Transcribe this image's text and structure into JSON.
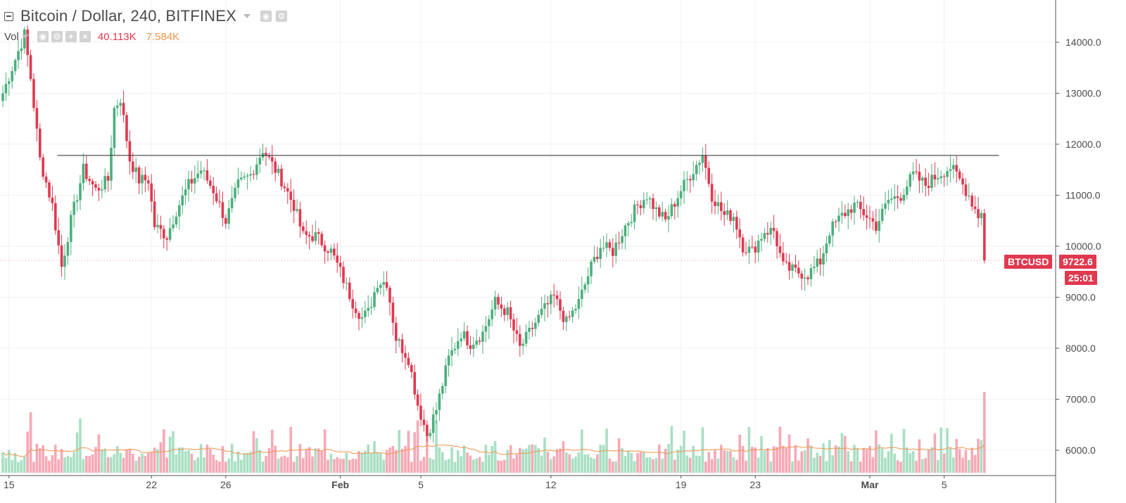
{
  "header": {
    "title": "Bitcoin / Dollar, 240, BITFINEX",
    "vol_label": "Vol",
    "vol_value_1": "40.113K",
    "vol_value_2": "7.584K"
  },
  "price_tag": {
    "symbol": "BTCUSD",
    "price": "9722.6",
    "countdown": "25:01"
  },
  "colors": {
    "up": "#4caf7d",
    "down": "#e0394f",
    "vol_up": "#a9dfc3",
    "vol_down": "#f6a9b6",
    "vol_ma": "#f0954a",
    "grid": "#eef1f5",
    "hline": "#3c3c3c",
    "axis_text": "#4a4a4a"
  },
  "chart_data": {
    "type": "candlestick",
    "timeframe": "240",
    "price_axis": {
      "ylim": [
        5520,
        14980
      ],
      "ticks": [
        "6000.0",
        "7000.0",
        "8000.0",
        "9000.0",
        "10000.0",
        "11000.0",
        "12000.0",
        "13000.0",
        "14000.0"
      ],
      "tick_values": [
        6000,
        7000,
        8000,
        9000,
        10000,
        11000,
        12000,
        13000,
        14000
      ]
    },
    "x_axis": {
      "labels": [
        "15",
        "22",
        "26",
        "Feb",
        "5",
        "12",
        "19",
        "23",
        "Mar",
        "5"
      ],
      "label_candle_index": [
        2,
        48,
        72,
        109,
        135,
        177,
        219,
        243,
        280,
        304
      ]
    },
    "horizontal_line": {
      "price": 11780,
      "from_index": 14,
      "to_index": 318
    },
    "anchors": [
      {
        "i": 0,
        "p": 13000
      },
      {
        "i": 3,
        "p": 13500
      },
      {
        "i": 7,
        "p": 14150
      },
      {
        "i": 9,
        "p": 13300
      },
      {
        "i": 12,
        "p": 11700
      },
      {
        "i": 16,
        "p": 10800
      },
      {
        "i": 19,
        "p": 9600
      },
      {
        "i": 22,
        "p": 10500
      },
      {
        "i": 26,
        "p": 11500
      },
      {
        "i": 30,
        "p": 11100
      },
      {
        "i": 34,
        "p": 11300
      },
      {
        "i": 36,
        "p": 12700
      },
      {
        "i": 38,
        "p": 12900
      },
      {
        "i": 41,
        "p": 11700
      },
      {
        "i": 44,
        "p": 11300
      },
      {
        "i": 47,
        "p": 11300
      },
      {
        "i": 49,
        "p": 10400
      },
      {
        "i": 53,
        "p": 10200
      },
      {
        "i": 56,
        "p": 10700
      },
      {
        "i": 60,
        "p": 11200
      },
      {
        "i": 64,
        "p": 11500
      },
      {
        "i": 68,
        "p": 11100
      },
      {
        "i": 72,
        "p": 10500
      },
      {
        "i": 76,
        "p": 11200
      },
      {
        "i": 80,
        "p": 11400
      },
      {
        "i": 84,
        "p": 11900
      },
      {
        "i": 86,
        "p": 11700
      },
      {
        "i": 90,
        "p": 11300
      },
      {
        "i": 94,
        "p": 10800
      },
      {
        "i": 97,
        "p": 10200
      },
      {
        "i": 101,
        "p": 10200
      },
      {
        "i": 106,
        "p": 9900
      },
      {
        "i": 109,
        "p": 9500
      },
      {
        "i": 113,
        "p": 8900
      },
      {
        "i": 116,
        "p": 8600
      },
      {
        "i": 118,
        "p": 8700
      },
      {
        "i": 121,
        "p": 9300
      },
      {
        "i": 124,
        "p": 9300
      },
      {
        "i": 127,
        "p": 8200
      },
      {
        "i": 131,
        "p": 7800
      },
      {
        "i": 134,
        "p": 6900
      },
      {
        "i": 137,
        "p": 6300
      },
      {
        "i": 140,
        "p": 6800
      },
      {
        "i": 144,
        "p": 7800
      },
      {
        "i": 148,
        "p": 8300
      },
      {
        "i": 151,
        "p": 8100
      },
      {
        "i": 155,
        "p": 8300
      },
      {
        "i": 159,
        "p": 8900
      },
      {
        "i": 163,
        "p": 8700
      },
      {
        "i": 167,
        "p": 8000
      },
      {
        "i": 170,
        "p": 8300
      },
      {
        "i": 174,
        "p": 8700
      },
      {
        "i": 178,
        "p": 9000
      },
      {
        "i": 182,
        "p": 8500
      },
      {
        "i": 186,
        "p": 8900
      },
      {
        "i": 190,
        "p": 9600
      },
      {
        "i": 193,
        "p": 10000
      },
      {
        "i": 197,
        "p": 9900
      },
      {
        "i": 201,
        "p": 10400
      },
      {
        "i": 205,
        "p": 10800
      },
      {
        "i": 208,
        "p": 11000
      },
      {
        "i": 211,
        "p": 10700
      },
      {
        "i": 214,
        "p": 10500
      },
      {
        "i": 219,
        "p": 11100
      },
      {
        "i": 224,
        "p": 11600
      },
      {
        "i": 226,
        "p": 11800
      },
      {
        "i": 229,
        "p": 11000
      },
      {
        "i": 233,
        "p": 10600
      },
      {
        "i": 236,
        "p": 10600
      },
      {
        "i": 239,
        "p": 10000
      },
      {
        "i": 242,
        "p": 9900
      },
      {
        "i": 246,
        "p": 10300
      },
      {
        "i": 249,
        "p": 10300
      },
      {
        "i": 252,
        "p": 9600
      },
      {
        "i": 256,
        "p": 9500
      },
      {
        "i": 260,
        "p": 9450
      },
      {
        "i": 264,
        "p": 9700
      },
      {
        "i": 267,
        "p": 10300
      },
      {
        "i": 271,
        "p": 10600
      },
      {
        "i": 275,
        "p": 10800
      },
      {
        "i": 279,
        "p": 10600
      },
      {
        "i": 282,
        "p": 10400
      },
      {
        "i": 286,
        "p": 10900
      },
      {
        "i": 290,
        "p": 11000
      },
      {
        "i": 294,
        "p": 11400
      },
      {
        "i": 298,
        "p": 11200
      },
      {
        "i": 302,
        "p": 11400
      },
      {
        "i": 306,
        "p": 11550
      },
      {
        "i": 309,
        "p": 11300
      },
      {
        "i": 312,
        "p": 11000
      },
      {
        "i": 315,
        "p": 10600
      },
      {
        "i": 316,
        "p": 10650
      },
      {
        "i": 317,
        "p": 9722.6
      }
    ],
    "volume": {
      "ylim": [
        0,
        60000
      ],
      "baseline": 5400,
      "spike_at_index": {
        "9": 30000,
        "24": 20000,
        "25": 27000,
        "134": 26000,
        "137": 24000,
        "140": 26000,
        "260": 17000,
        "317": 40113
      },
      "ma_value_last": 7584,
      "ma_label": "7.584K"
    },
    "xlabel": "",
    "ylabel": ""
  }
}
